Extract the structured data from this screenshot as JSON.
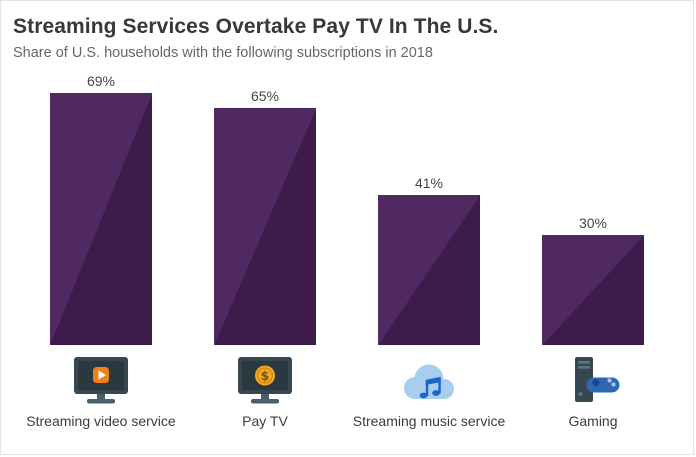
{
  "chart_data": {
    "type": "bar",
    "title": "Streaming Services Overtake Pay TV In The U.S.",
    "subtitle": "Share of U.S. households with the following subscriptions in 2018",
    "categories": [
      "Streaming video service",
      "Pay TV",
      "Streaming music service",
      "Gaming"
    ],
    "values": [
      69,
      65,
      41,
      30
    ],
    "value_labels": [
      "69%",
      "65%",
      "41%",
      "30%"
    ],
    "unit": "%",
    "xlabel": "",
    "ylabel": "Share of U.S. households",
    "ylim": [
      0,
      75
    ],
    "grid": false,
    "legend": "none",
    "bar_colors": {
      "light": "#502962",
      "dark": "#3d1c4c"
    },
    "icons": [
      "streaming-video-icon",
      "pay-tv-icon",
      "streaming-music-icon",
      "gaming-icon"
    ]
  },
  "styles": {
    "title_color": "#383838",
    "subtitle_color": "#666666",
    "accent_orange": "#f08019",
    "accent_gold": "#f5a623",
    "accent_blue": "#1b66c9",
    "icon_dark": "#36474f"
  }
}
